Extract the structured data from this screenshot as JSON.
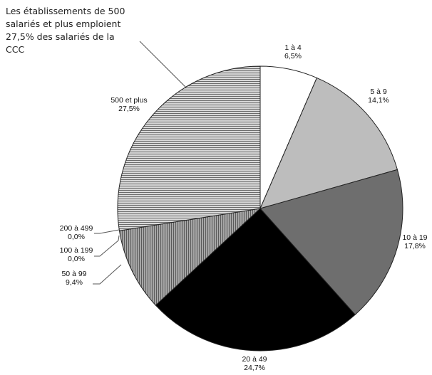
{
  "chart_data": {
    "type": "pie",
    "annotation": {
      "lines": [
        "Les établissements de 500",
        "salariés et plus emploient",
        "27,5% des salariés de la",
        "CCC"
      ]
    },
    "slices": [
      {
        "category": "1 à 4",
        "value": 6.5,
        "label": "6,5%",
        "fill": "#ffffff",
        "pattern": "none"
      },
      {
        "category": "5 à 9",
        "value": 14.1,
        "label": "14,1%",
        "fill": "#bdbdbd",
        "pattern": "none"
      },
      {
        "category": "10 à 19",
        "value": 17.8,
        "label": "17,8%",
        "fill": "#6e6e6e",
        "pattern": "none"
      },
      {
        "category": "20 à 49",
        "value": 24.7,
        "label": "24,7%",
        "fill": "#000000",
        "pattern": "none"
      },
      {
        "category": "50 à 99",
        "value": 9.4,
        "label": "9,4%",
        "fill": "#8a8a8a",
        "pattern": "vertical"
      },
      {
        "category": "100 à 199",
        "value": 0.0,
        "label": "0,0%",
        "fill": "#9a9a9a",
        "pattern": "none"
      },
      {
        "category": "200 à 499",
        "value": 0.0,
        "label": "0,0%",
        "fill": "#9a9a9a",
        "pattern": "none"
      },
      {
        "category": "500 et plus",
        "value": 27.5,
        "label": "27,5%",
        "fill": "#c8c8c8",
        "pattern": "horizontal"
      }
    ]
  }
}
